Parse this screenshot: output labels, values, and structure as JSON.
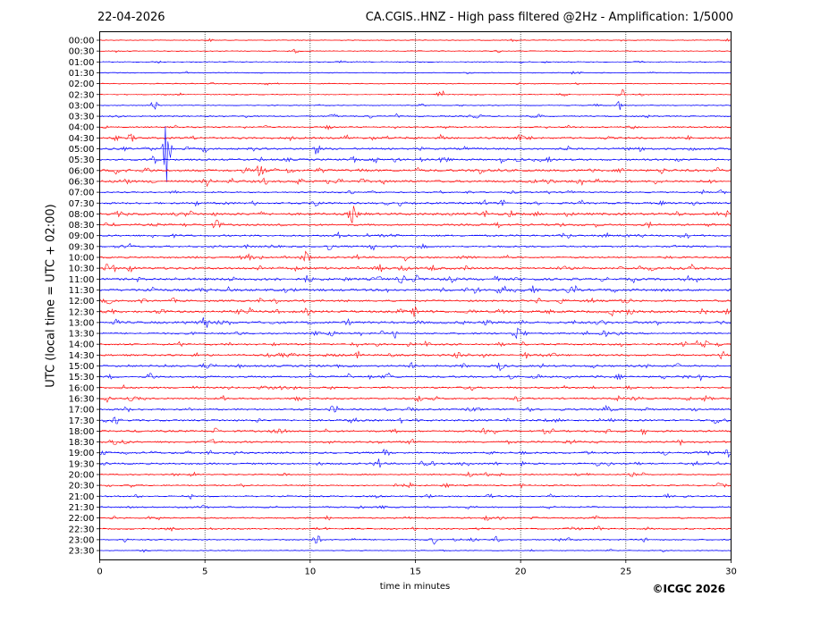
{
  "header": {
    "date": "22-04-2026",
    "title": "CA.CGIS..HNZ - High pass filtered @2Hz - Amplification: 1/5000"
  },
  "footer": {
    "copyright": "©ICGC 2026"
  },
  "colors": {
    "trace_a": "#ff0000",
    "trace_b": "#0000ff",
    "grid": "#000000",
    "frame": "#000000"
  },
  "chart_data": {
    "type": "line",
    "xlabel": "time in minutes",
    "ylabel": "UTC (local time = UTC + 02:00)",
    "xlim": [
      0,
      30
    ],
    "xticks": [
      "0",
      "5",
      "10",
      "15",
      "20",
      "25",
      "30"
    ],
    "x_gridlines": [
      5,
      10,
      15,
      20,
      25
    ],
    "grid": "vertical dotted",
    "ytick_labels": [
      "00:00",
      "00:30",
      "01:00",
      "01:30",
      "02:00",
      "02:30",
      "03:00",
      "03:30",
      "04:00",
      "04:30",
      "05:00",
      "05:30",
      "06:00",
      "06:30",
      "07:00",
      "07:30",
      "08:00",
      "08:30",
      "09:00",
      "09:30",
      "10:00",
      "10:30",
      "11:00",
      "11:30",
      "12:00",
      "12:30",
      "13:00",
      "13:30",
      "14:00",
      "14:30",
      "15:00",
      "15:30",
      "16:00",
      "16:30",
      "17:00",
      "17:30",
      "18:00",
      "18:30",
      "19:00",
      "19:30",
      "20:00",
      "20:30",
      "21:00",
      "21:30",
      "22:00",
      "22:30",
      "23:00",
      "23:30"
    ],
    "trace_color_pattern": [
      "red",
      "red",
      "blue",
      "blue"
    ],
    "activity_by_row": [
      1,
      1,
      1,
      1,
      1,
      1,
      1,
      2,
      2,
      3,
      3,
      3,
      4,
      4,
      2,
      3,
      4,
      3,
      3,
      3,
      3,
      4,
      4,
      4,
      3,
      4,
      4,
      3,
      3,
      3,
      3,
      3,
      3,
      3,
      3,
      3,
      3,
      3,
      3,
      3,
      2,
      2,
      2,
      2,
      2,
      2,
      2,
      1
    ],
    "events": [
      {
        "row": 5,
        "minute": 16.2,
        "amp": 0.9
      },
      {
        "row": 5,
        "minute": 24.8,
        "amp": 1.0
      },
      {
        "row": 6,
        "minute": 2.6,
        "amp": 1.0
      },
      {
        "row": 6,
        "minute": 24.7,
        "amp": 0.8
      },
      {
        "row": 9,
        "minute": 16.3,
        "amp": 0.9
      },
      {
        "row": 10,
        "minute": 3.2,
        "amp": 6.0
      },
      {
        "row": 11,
        "minute": 2.6,
        "amp": 1.0
      },
      {
        "row": 13,
        "minute": 5.1,
        "amp": 0.8
      },
      {
        "row": 13,
        "minute": 1.2,
        "amp": 0.7
      },
      {
        "row": 22,
        "minute": 9.9,
        "amp": 0.8
      },
      {
        "row": 25,
        "minute": 15.0,
        "amp": 0.8
      },
      {
        "row": 27,
        "minute": 19.8,
        "amp": 0.8
      },
      {
        "row": 29,
        "minute": 29.6,
        "amp": 0.8
      },
      {
        "row": 31,
        "minute": 2.4,
        "amp": 0.8
      },
      {
        "row": 35,
        "minute": 29.3,
        "amp": 0.8
      },
      {
        "row": 38,
        "minute": 29.9,
        "amp": 0.8
      },
      {
        "row": 39,
        "minute": 13.3,
        "amp": 0.8
      },
      {
        "row": 46,
        "minute": 10.3,
        "amp": 1.0
      },
      {
        "row": 46,
        "minute": 15.8,
        "amp": 1.0
      }
    ]
  }
}
